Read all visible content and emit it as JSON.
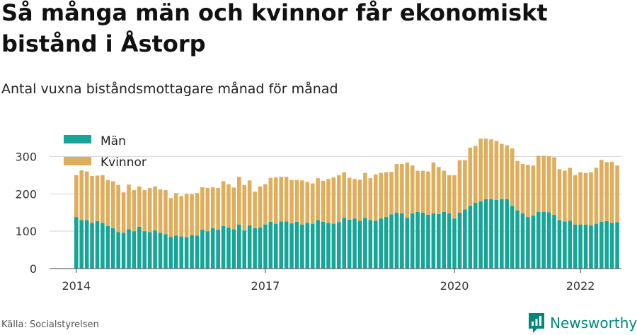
{
  "title": "Så många män och kvinnor får ekonomiskt bistånd i Åstorp",
  "subtitle": "Antal vuxna biståndsmottagare månad för månad",
  "source": "Källa: Socialstyrelsen",
  "brand": {
    "name": "Newsworthy",
    "logo_icon": "newsworthy-logo-icon"
  },
  "colors": {
    "man": "#17a597",
    "kvinnor": "#dfae5c",
    "grid": "#d9d9d9",
    "axis": "#444444",
    "brand": "#00897b"
  },
  "chart_data": {
    "type": "bar",
    "stacked": true,
    "title": "Så många män och kvinnor får ekonomiskt bistånd i Åstorp",
    "subtitle": "Antal vuxna biståndsmottagare månad för månad",
    "xlabel": "",
    "ylabel": "",
    "ylim": [
      0,
      350
    ],
    "yticks": [
      0,
      100,
      200,
      300
    ],
    "xtick_labels": [
      "2014",
      "2017",
      "2020",
      "2022"
    ],
    "grid": true,
    "legend_position": "top-left",
    "start_month": "2014-01",
    "series": [
      {
        "name": "Män",
        "color": "#17a597",
        "values": [
          138,
          130,
          130,
          122,
          127,
          122,
          114,
          108,
          98,
          96,
          105,
          100,
          112,
          100,
          98,
          102,
          96,
          92,
          85,
          88,
          86,
          84,
          89,
          88,
          104,
          100,
          108,
          104,
          114,
          110,
          105,
          118,
          102,
          116,
          108,
          110,
          118,
          125,
          120,
          126,
          126,
          121,
          125,
          118,
          122,
          120,
          130,
          125,
          122,
          120,
          124,
          136,
          131,
          134,
          128,
          136,
          130,
          128,
          134,
          138,
          145,
          150,
          148,
          136,
          148,
          152,
          150,
          144,
          148,
          146,
          152,
          148,
          134,
          150,
          158,
          168,
          176,
          180,
          186,
          186,
          184,
          186,
          186,
          168,
          156,
          148,
          138,
          142,
          152,
          152,
          151,
          144,
          130,
          126,
          128,
          118,
          118,
          118,
          116,
          120,
          125,
          127,
          122,
          124
        ]
      },
      {
        "name": "Kvinnor",
        "color": "#dfae5c",
        "values": [
          112,
          133,
          130,
          126,
          122,
          128,
          123,
          126,
          126,
          108,
          120,
          110,
          108,
          110,
          118,
          118,
          116,
          118,
          104,
          114,
          108,
          116,
          110,
          114,
          114,
          116,
          110,
          112,
          120,
          116,
          112,
          128,
          122,
          120,
          98,
          110,
          108,
          118,
          124,
          120,
          120,
          116,
          112,
          118,
          110,
          108,
          112,
          110,
          118,
          124,
          126,
          122,
          112,
          106,
          110,
          120,
          112,
          124,
          122,
          120,
          114,
          130,
          132,
          148,
          128,
          110,
          112,
          116,
          136,
          126,
          110,
          102,
          116,
          140,
          132,
          156,
          152,
          168,
          162,
          160,
          158,
          148,
          144,
          154,
          132,
          132,
          140,
          134,
          150,
          150,
          150,
          154,
          136,
          136,
          142,
          132,
          140,
          138,
          142,
          150,
          166,
          158,
          164,
          152
        ]
      }
    ]
  }
}
